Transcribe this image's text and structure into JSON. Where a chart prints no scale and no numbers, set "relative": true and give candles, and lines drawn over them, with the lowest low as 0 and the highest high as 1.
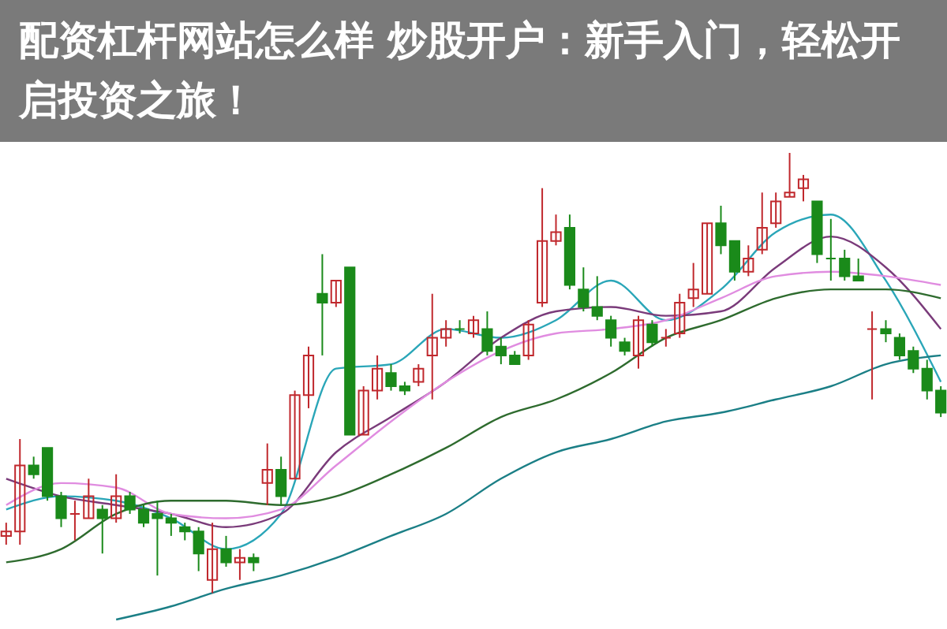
{
  "chart_data": {
    "type": "candlestick",
    "relative": true,
    "title": "配资杠杆网站怎么样 炒股开户：新手入门，轻松开启投资之旅！",
    "categories": [
      null,
      null,
      null,
      null,
      null,
      null,
      null,
      null,
      null,
      null,
      null,
      null,
      null,
      null,
      null,
      null,
      null,
      null,
      null,
      null,
      null,
      null,
      null,
      null,
      null,
      null,
      null,
      null,
      null,
      null,
      null,
      null,
      null,
      null,
      null,
      null,
      null,
      null,
      null,
      null,
      null,
      null,
      null,
      null,
      null,
      null,
      null,
      null,
      null,
      null,
      null,
      null,
      null,
      null,
      null,
      null,
      null,
      null,
      null,
      null,
      null,
      null,
      null,
      null,
      null,
      null,
      null,
      null,
      null
    ],
    "ohlc": [
      [
        0.13,
        0.16,
        0.11,
        0.14
      ],
      [
        0.14,
        0.35,
        0.11,
        0.29
      ],
      [
        0.29,
        0.31,
        0.26,
        0.27
      ],
      [
        0.33,
        0.33,
        0.21,
        0.22
      ],
      [
        0.22,
        0.23,
        0.15,
        0.17
      ],
      [
        0.18,
        0.21,
        0.12,
        0.18
      ],
      [
        0.17,
        0.26,
        0.17,
        0.22
      ],
      [
        0.19,
        0.2,
        0.09,
        0.17
      ],
      [
        0.17,
        0.27,
        0.16,
        0.22
      ],
      [
        0.22,
        0.23,
        0.18,
        0.19
      ],
      [
        0.19,
        0.2,
        0.15,
        0.16
      ],
      [
        0.18,
        0.21,
        0.04,
        0.17
      ],
      [
        0.17,
        0.18,
        0.13,
        0.16
      ],
      [
        0.15,
        0.16,
        0.12,
        0.14
      ],
      [
        0.14,
        0.15,
        0.05,
        0.09
      ],
      [
        0.03,
        0.16,
        0,
        0.1
      ],
      [
        0.1,
        0.13,
        0.06,
        0.07
      ],
      [
        0.07,
        0.1,
        0.03,
        0.08
      ],
      [
        0.08,
        0.09,
        0.05,
        0.07
      ],
      [
        0.25,
        0.34,
        0.2,
        0.28
      ],
      [
        0.28,
        0.31,
        0.2,
        0.22
      ],
      [
        0.26,
        0.46,
        0.26,
        0.45
      ],
      [
        0.45,
        0.56,
        0.42,
        0.54
      ],
      [
        0.68,
        0.77,
        0.54,
        0.66
      ],
      [
        0.66,
        0.71,
        0.65,
        0.71
      ],
      [
        0.74,
        0.74,
        0.36,
        0.36
      ],
      [
        0.36,
        0.47,
        0.36,
        0.46
      ],
      [
        0.46,
        0.54,
        0.44,
        0.51
      ],
      [
        0.5,
        0.52,
        0.46,
        0.47
      ],
      [
        0.47,
        0.48,
        0.45,
        0.46
      ],
      [
        0.48,
        0.52,
        0.47,
        0.51
      ],
      [
        0.54,
        0.68,
        0.44,
        0.58
      ],
      [
        0.58,
        0.62,
        0.56,
        0.6
      ],
      [
        0.6,
        0.62,
        0.59,
        0.6
      ],
      [
        0.59,
        0.63,
        0.58,
        0.62
      ],
      [
        0.6,
        0.64,
        0.54,
        0.55
      ],
      [
        0.56,
        0.58,
        0.52,
        0.54
      ],
      [
        0.54,
        0.55,
        0.52,
        0.52
      ],
      [
        0.54,
        0.62,
        0.53,
        0.61
      ],
      [
        0.66,
        0.92,
        0.65,
        0.8
      ],
      [
        0.8,
        0.86,
        0.79,
        0.82
      ],
      [
        0.83,
        0.86,
        0.69,
        0.7
      ],
      [
        0.69,
        0.74,
        0.64,
        0.65
      ],
      [
        0.65,
        0.72,
        0.62,
        0.63
      ],
      [
        0.62,
        0.63,
        0.56,
        0.58
      ],
      [
        0.57,
        0.58,
        0.54,
        0.55
      ],
      [
        0.54,
        0.63,
        0.51,
        0.62
      ],
      [
        0.61,
        0.62,
        0.56,
        0.57
      ],
      [
        0.58,
        0.6,
        0.56,
        0.58
      ],
      [
        0.59,
        0.68,
        0.58,
        0.66
      ],
      [
        0.67,
        0.75,
        0.65,
        0.69
      ],
      [
        0.68,
        0.84,
        0.68,
        0.84
      ],
      [
        0.84,
        0.88,
        0.77,
        0.79
      ],
      [
        0.8,
        0.8,
        0.71,
        0.73
      ],
      [
        0.73,
        0.79,
        0.72,
        0.76
      ],
      [
        0.78,
        0.91,
        0.77,
        0.83
      ],
      [
        0.84,
        0.91,
        0.83,
        0.89
      ],
      [
        0.9,
        1,
        0.9,
        0.91
      ],
      [
        0.92,
        0.95,
        0.89,
        0.94
      ],
      [
        0.89,
        0.89,
        0.75,
        0.77
      ],
      [
        0.76,
        0.85,
        0.71,
        0.76
      ],
      [
        0.76,
        0.78,
        0.71,
        0.72
      ],
      [
        0.72,
        0.76,
        0.71,
        0.71
      ],
      [
        0.6,
        0.64,
        0.44,
        0.6
      ],
      [
        0.6,
        0.62,
        0.57,
        0.59
      ],
      [
        0.58,
        0.59,
        0.53,
        0.54
      ],
      [
        0.55,
        0.56,
        0.5,
        0.51
      ],
      [
        0.51,
        0.53,
        0.44,
        0.46
      ],
      [
        0.46,
        0.47,
        0.4,
        0.41
      ]
    ],
    "colors": [
      "#c0282d",
      "#c0282d",
      "#1a8a1a",
      "#1a8a1a",
      "#1a8a1a",
      "#c0282d",
      "#c0282d",
      "#1a8a1a",
      "#c0282d",
      "#1a8a1a",
      "#1a8a1a",
      "#1a8a1a",
      "#1a8a1a",
      "#1a8a1a",
      "#1a8a1a",
      "#c0282d",
      "#1a8a1a",
      "#c0282d",
      "#1a8a1a",
      "#c0282d",
      "#1a8a1a",
      "#c0282d",
      "#c0282d",
      "#1a8a1a",
      "#c0282d",
      "#1a8a1a",
      "#c0282d",
      "#c0282d",
      "#1a8a1a",
      "#1a8a1a",
      "#c0282d",
      "#c0282d",
      "#c0282d",
      "#1a8a1a",
      "#c0282d",
      "#1a8a1a",
      "#1a8a1a",
      "#1a8a1a",
      "#c0282d",
      "#c0282d",
      "#c0282d",
      "#1a8a1a",
      "#1a8a1a",
      "#1a8a1a",
      "#1a8a1a",
      "#1a8a1a",
      "#c0282d",
      "#1a8a1a",
      "#c0282d",
      "#c0282d",
      "#c0282d",
      "#c0282d",
      "#1a8a1a",
      "#1a8a1a",
      "#c0282d",
      "#c0282d",
      "#c0282d",
      "#c0282d",
      "#c0282d",
      "#1a8a1a",
      "#1a8a1a",
      "#1a8a1a",
      "#1a8a1a",
      "#c0282d",
      "#1a8a1a",
      "#1a8a1a",
      "#1a8a1a",
      "#1a8a1a",
      "#1a8a1a"
    ],
    "series": [
      {
        "type": "line",
        "color": "#2aa6b8",
        "values": [
          0.19,
          null,
          null,
          null,
          0.22,
          null,
          null,
          null,
          0.21,
          null,
          null,
          null,
          0.17,
          null,
          null,
          null,
          0.1,
          null,
          null,
          null,
          0.18,
          null,
          null,
          null,
          0.51,
          null,
          null,
          null,
          0.52,
          null,
          null,
          null,
          0.6,
          null,
          null,
          null,
          0.58,
          null,
          null,
          null,
          0.62,
          null,
          null,
          null,
          0.71,
          null,
          null,
          null,
          0.62,
          null,
          null,
          null,
          0.69,
          null,
          null,
          null,
          0.82,
          null,
          null,
          null,
          0.86,
          null,
          null,
          null,
          0.71,
          null,
          null,
          null,
          0.48
        ]
      },
      {
        "type": "line",
        "color": "#7a3b7a",
        "values": [
          0.26,
          null,
          null,
          null,
          0.22,
          null,
          null,
          null,
          0.2,
          null,
          null,
          null,
          0.18,
          null,
          null,
          null,
          0.15,
          null,
          null,
          null,
          0.18,
          null,
          null,
          null,
          0.32,
          null,
          null,
          null,
          0.4,
          null,
          null,
          null,
          0.48,
          null,
          null,
          null,
          0.58,
          null,
          null,
          null,
          0.64,
          null,
          null,
          null,
          0.65,
          null,
          null,
          null,
          0.63,
          null,
          null,
          null,
          0.64,
          null,
          null,
          null,
          0.74,
          null,
          null,
          null,
          0.81,
          null,
          null,
          null,
          0.74,
          null,
          null,
          null,
          0.6
        ]
      },
      {
        "type": "line",
        "color": "#e08ce0",
        "values": [
          0.2,
          null,
          null,
          null,
          0.25,
          null,
          null,
          null,
          0.24,
          null,
          null,
          null,
          0.18,
          null,
          null,
          null,
          0.17,
          null,
          null,
          null,
          0.19,
          null,
          null,
          null,
          0.29,
          null,
          null,
          null,
          0.39,
          null,
          null,
          null,
          0.48,
          null,
          null,
          null,
          0.55,
          null,
          null,
          null,
          0.59,
          null,
          null,
          null,
          0.6,
          null,
          null,
          null,
          0.62,
          null,
          null,
          null,
          0.67,
          null,
          null,
          null,
          0.72,
          null,
          null,
          null,
          0.73,
          null,
          null,
          null,
          0.72,
          null,
          null,
          null,
          0.7
        ]
      },
      {
        "type": "line",
        "color": "#2e6b2e",
        "values": [
          0.07,
          null,
          null,
          null,
          0.1,
          null,
          null,
          null,
          0.18,
          null,
          null,
          null,
          0.21,
          null,
          null,
          null,
          0.21,
          null,
          null,
          null,
          0.2,
          null,
          null,
          null,
          0.22,
          null,
          null,
          null,
          0.27,
          null,
          null,
          null,
          0.33,
          null,
          null,
          null,
          0.4,
          null,
          null,
          null,
          0.44,
          null,
          null,
          null,
          0.5,
          null,
          null,
          null,
          0.58,
          null,
          null,
          null,
          0.62,
          null,
          null,
          null,
          0.67,
          null,
          null,
          null,
          0.69,
          null,
          null,
          null,
          0.69,
          null,
          null,
          null,
          0.67
        ]
      },
      {
        "type": "line",
        "color": "#1b7f86",
        "values": [
          null,
          null,
          null,
          null,
          null,
          null,
          null,
          null,
          -0.06,
          null,
          null,
          null,
          -0.03,
          null,
          null,
          null,
          0.01,
          null,
          null,
          null,
          0.04,
          null,
          null,
          null,
          0.08,
          null,
          null,
          null,
          0.13,
          null,
          null,
          null,
          0.18,
          null,
          null,
          null,
          0.26,
          null,
          null,
          null,
          0.32,
          null,
          null,
          null,
          0.35,
          null,
          null,
          null,
          0.39,
          null,
          null,
          null,
          0.41,
          null,
          null,
          null,
          0.44,
          null,
          null,
          null,
          0.47,
          null,
          null,
          null,
          0.52,
          null,
          null,
          null,
          0.54
        ]
      }
    ]
  }
}
